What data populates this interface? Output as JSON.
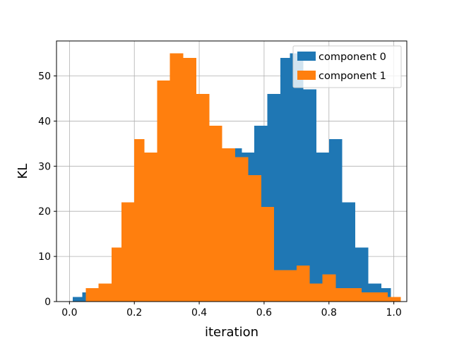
{
  "chart_data": {
    "type": "histogram",
    "xlabel": "iteration",
    "ylabel": "KL",
    "xlim": [
      -0.04,
      1.04
    ],
    "ylim": [
      0,
      57.75
    ],
    "grid": true,
    "legend_position": "top-right",
    "x_ticks": [
      "0.0",
      "0.2",
      "0.4",
      "0.6",
      "0.8",
      "1.0"
    ],
    "y_ticks": [
      "0",
      "10",
      "20",
      "30",
      "40",
      "50"
    ],
    "series": [
      {
        "name": "component 0",
        "color": "#1f77b4",
        "bins": [
          {
            "x0": 0.01,
            "x1": 0.04,
            "value": 1
          },
          {
            "x0": 0.04,
            "x1": 0.06,
            "value": 2
          },
          {
            "x0": 0.06,
            "x1": 0.11,
            "value": 0
          },
          {
            "x0": 0.11,
            "x1": 0.15,
            "value": 4
          },
          {
            "x0": 0.15,
            "x1": 0.2,
            "value": 10
          },
          {
            "x0": 0.2,
            "x1": 0.25,
            "value": 18
          },
          {
            "x0": 0.25,
            "x1": 0.3,
            "value": 23
          },
          {
            "x0": 0.3,
            "x1": 0.35,
            "value": 29
          },
          {
            "x0": 0.35,
            "x1": 0.4,
            "value": 26
          },
          {
            "x0": 0.4,
            "x1": 0.44,
            "value": 28
          },
          {
            "x0": 0.44,
            "x1": 0.49,
            "value": 33
          },
          {
            "x0": 0.49,
            "x1": 0.53,
            "value": 34
          },
          {
            "x0": 0.53,
            "x1": 0.57,
            "value": 33
          },
          {
            "x0": 0.57,
            "x1": 0.61,
            "value": 39
          },
          {
            "x0": 0.61,
            "x1": 0.65,
            "value": 46
          },
          {
            "x0": 0.65,
            "x1": 0.68,
            "value": 54
          },
          {
            "x0": 0.68,
            "x1": 0.72,
            "value": 55
          },
          {
            "x0": 0.72,
            "x1": 0.76,
            "value": 47
          },
          {
            "x0": 0.76,
            "x1": 0.8,
            "value": 33
          },
          {
            "x0": 0.8,
            "x1": 0.84,
            "value": 36
          },
          {
            "x0": 0.84,
            "x1": 0.88,
            "value": 22
          },
          {
            "x0": 0.88,
            "x1": 0.92,
            "value": 12
          },
          {
            "x0": 0.92,
            "x1": 0.96,
            "value": 4
          },
          {
            "x0": 0.96,
            "x1": 0.99,
            "value": 3
          }
        ]
      },
      {
        "name": "component 1",
        "color": "#ff7f0e",
        "bins": [
          {
            "x0": 0.05,
            "x1": 0.09,
            "value": 3
          },
          {
            "x0": 0.09,
            "x1": 0.13,
            "value": 4
          },
          {
            "x0": 0.13,
            "x1": 0.16,
            "value": 12
          },
          {
            "x0": 0.16,
            "x1": 0.2,
            "value": 22
          },
          {
            "x0": 0.2,
            "x1": 0.23,
            "value": 36
          },
          {
            "x0": 0.23,
            "x1": 0.27,
            "value": 33
          },
          {
            "x0": 0.27,
            "x1": 0.31,
            "value": 49
          },
          {
            "x0": 0.31,
            "x1": 0.35,
            "value": 55
          },
          {
            "x0": 0.35,
            "x1": 0.39,
            "value": 54
          },
          {
            "x0": 0.39,
            "x1": 0.43,
            "value": 46
          },
          {
            "x0": 0.43,
            "x1": 0.47,
            "value": 39
          },
          {
            "x0": 0.47,
            "x1": 0.51,
            "value": 34
          },
          {
            "x0": 0.51,
            "x1": 0.55,
            "value": 32
          },
          {
            "x0": 0.55,
            "x1": 0.59,
            "value": 28
          },
          {
            "x0": 0.59,
            "x1": 0.63,
            "value": 21
          },
          {
            "x0": 0.63,
            "x1": 0.66,
            "value": 7
          },
          {
            "x0": 0.66,
            "x1": 0.7,
            "value": 7
          },
          {
            "x0": 0.7,
            "x1": 0.74,
            "value": 8
          },
          {
            "x0": 0.74,
            "x1": 0.78,
            "value": 4
          },
          {
            "x0": 0.78,
            "x1": 0.82,
            "value": 6
          },
          {
            "x0": 0.82,
            "x1": 0.86,
            "value": 3
          },
          {
            "x0": 0.86,
            "x1": 0.9,
            "value": 3
          },
          {
            "x0": 0.9,
            "x1": 0.94,
            "value": 2
          },
          {
            "x0": 0.94,
            "x1": 0.98,
            "value": 2
          },
          {
            "x0": 0.98,
            "x1": 1.02,
            "value": 1
          }
        ]
      }
    ]
  }
}
